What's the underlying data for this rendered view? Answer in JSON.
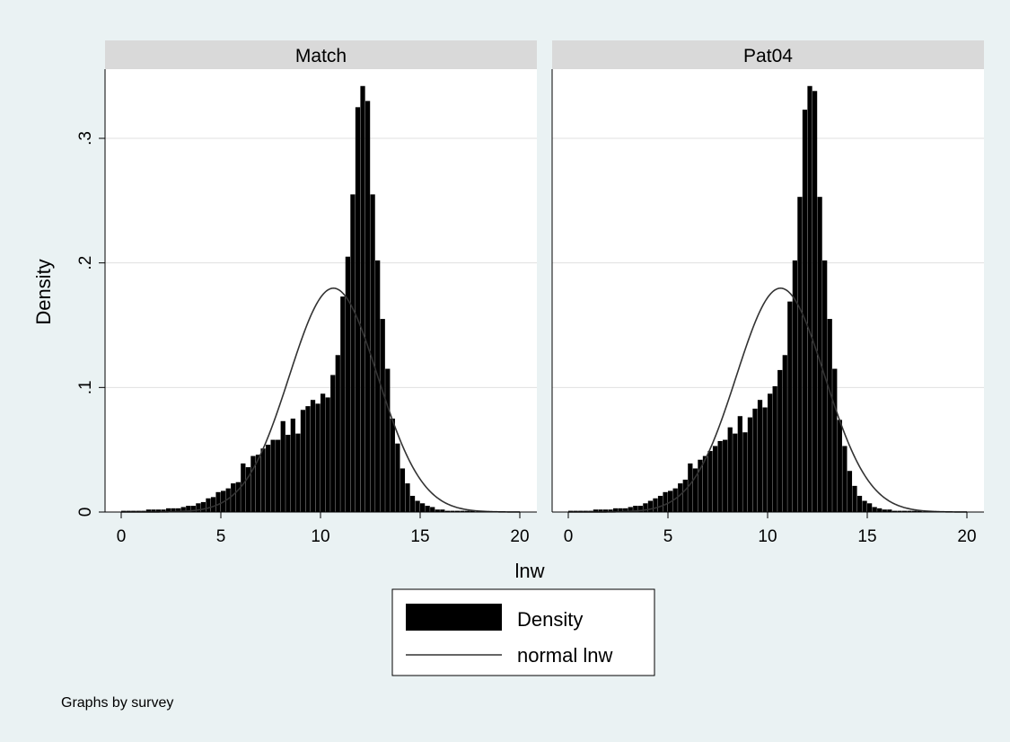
{
  "background": "#eaf2f3",
  "plot_background": "#ffffff",
  "strip_color": "#d9d9d9",
  "bar_color": "#000000",
  "curve_color": "#333333",
  "grid_color": "#e0e0e0",
  "chart_data": {
    "type": "bar",
    "xlabel": "lnw",
    "ylabel": "Density",
    "xlim": [
      0,
      20
    ],
    "ylim": [
      0,
      0.35
    ],
    "x_ticks": [
      0,
      5,
      10,
      15,
      20
    ],
    "y_ticks": [
      0,
      0.1,
      0.2,
      0.3
    ],
    "y_tick_labels": [
      "0",
      ".1",
      ".2",
      ".3"
    ],
    "grid": true,
    "legend_placement": "bottom",
    "legend": [
      "Density",
      "normal lnw"
    ],
    "note": "Graphs by survey",
    "bin_width": 0.25,
    "normal_curve": {
      "mean": 10.65,
      "sd": 2.22
    },
    "panels": [
      {
        "name": "Match",
        "bin_starts": [
          0.0,
          0.25,
          0.5,
          0.75,
          1.0,
          1.25,
          1.5,
          1.75,
          2.0,
          2.25,
          2.5,
          2.75,
          3.0,
          3.25,
          3.5,
          3.75,
          4.0,
          4.25,
          4.5,
          4.75,
          5.0,
          5.25,
          5.5,
          5.75,
          6.0,
          6.25,
          6.5,
          6.75,
          7.0,
          7.25,
          7.5,
          7.75,
          8.0,
          8.25,
          8.5,
          8.75,
          9.0,
          9.25,
          9.5,
          9.75,
          10.0,
          10.25,
          10.5,
          10.75,
          11.0,
          11.25,
          11.5,
          11.75,
          12.0,
          12.25,
          12.5,
          12.75,
          13.0,
          13.25,
          13.5,
          13.75,
          14.0,
          14.25,
          14.5,
          14.75,
          15.0,
          15.25,
          15.5,
          15.75,
          16.0,
          16.25,
          16.5,
          16.75,
          17.0,
          17.25,
          17.5
        ],
        "values": [
          0.001,
          0.001,
          0.001,
          0.001,
          0.001,
          0.002,
          0.002,
          0.002,
          0.002,
          0.003,
          0.003,
          0.003,
          0.004,
          0.005,
          0.005,
          0.007,
          0.008,
          0.011,
          0.012,
          0.016,
          0.017,
          0.019,
          0.023,
          0.024,
          0.039,
          0.036,
          0.045,
          0.046,
          0.051,
          0.054,
          0.058,
          0.058,
          0.073,
          0.062,
          0.075,
          0.063,
          0.082,
          0.085,
          0.09,
          0.087,
          0.095,
          0.092,
          0.11,
          0.126,
          0.173,
          0.205,
          0.255,
          0.325,
          0.342,
          0.33,
          0.255,
          0.202,
          0.155,
          0.115,
          0.075,
          0.055,
          0.035,
          0.023,
          0.013,
          0.009,
          0.007,
          0.005,
          0.004,
          0.002,
          0.002,
          0.001,
          0.001,
          0.001,
          0.001,
          0.001,
          0.001
        ]
      },
      {
        "name": "Pat04",
        "bin_starts": [
          0.0,
          0.25,
          0.5,
          0.75,
          1.0,
          1.25,
          1.5,
          1.75,
          2.0,
          2.25,
          2.5,
          2.75,
          3.0,
          3.25,
          3.5,
          3.75,
          4.0,
          4.25,
          4.5,
          4.75,
          5.0,
          5.25,
          5.5,
          5.75,
          6.0,
          6.25,
          6.5,
          6.75,
          7.0,
          7.25,
          7.5,
          7.75,
          8.0,
          8.25,
          8.5,
          8.75,
          9.0,
          9.25,
          9.5,
          9.75,
          10.0,
          10.25,
          10.5,
          10.75,
          11.0,
          11.25,
          11.5,
          11.75,
          12.0,
          12.25,
          12.5,
          12.75,
          13.0,
          13.25,
          13.5,
          13.75,
          14.0,
          14.25,
          14.5,
          14.75,
          15.0,
          15.25,
          15.5,
          15.75,
          16.0,
          16.25,
          16.5,
          16.75,
          17.0,
          17.25,
          17.5
        ],
        "values": [
          0.001,
          0.001,
          0.001,
          0.001,
          0.001,
          0.002,
          0.002,
          0.002,
          0.002,
          0.003,
          0.003,
          0.003,
          0.004,
          0.005,
          0.005,
          0.007,
          0.009,
          0.011,
          0.013,
          0.016,
          0.017,
          0.019,
          0.023,
          0.026,
          0.039,
          0.035,
          0.042,
          0.045,
          0.049,
          0.053,
          0.057,
          0.058,
          0.068,
          0.063,
          0.077,
          0.064,
          0.076,
          0.083,
          0.09,
          0.084,
          0.095,
          0.101,
          0.114,
          0.126,
          0.169,
          0.202,
          0.253,
          0.323,
          0.342,
          0.338,
          0.253,
          0.202,
          0.155,
          0.115,
          0.074,
          0.053,
          0.033,
          0.021,
          0.013,
          0.009,
          0.007,
          0.004,
          0.003,
          0.002,
          0.002,
          0.001,
          0.001,
          0.001,
          0.001,
          0.001,
          0.001
        ]
      }
    ]
  }
}
